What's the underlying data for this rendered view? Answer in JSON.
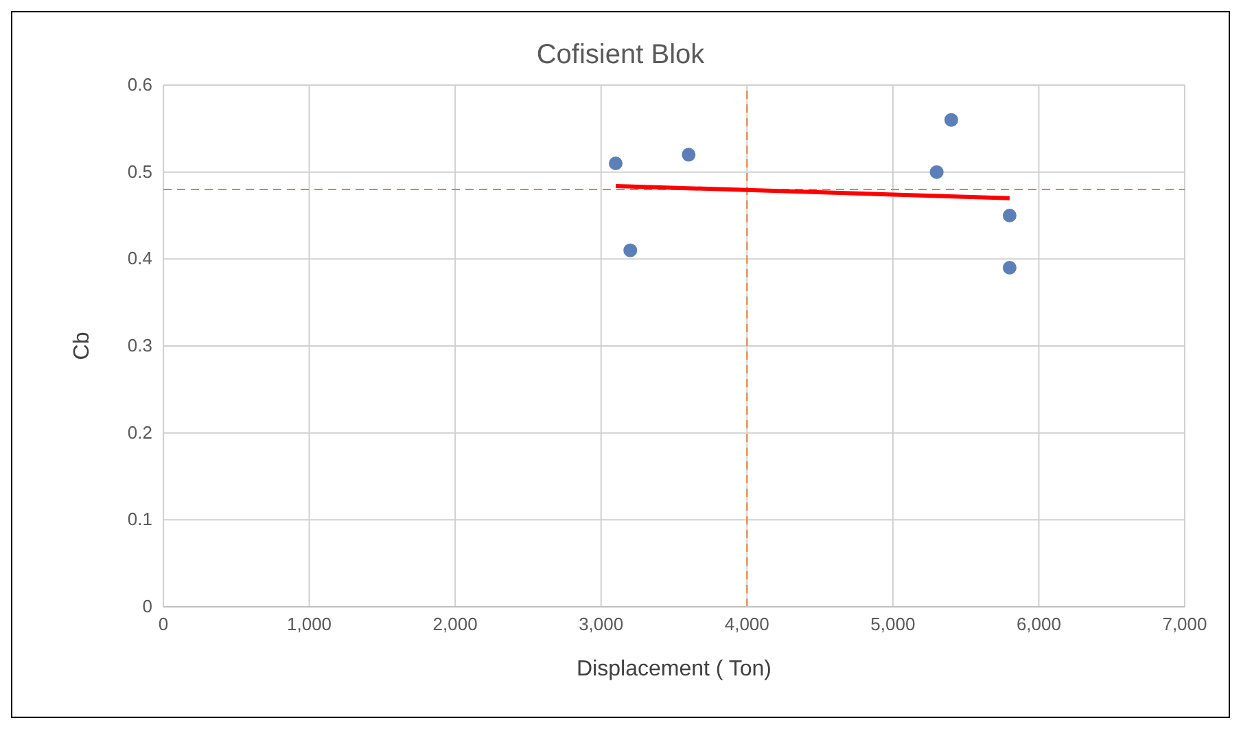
{
  "chart_data": {
    "type": "scatter",
    "title": "Cofisient Blok",
    "xlabel": "Displacement ( Ton)",
    "ylabel": "Cb",
    "xlim": [
      0,
      7000
    ],
    "xticks": [
      {
        "value": 0,
        "label": "0"
      },
      {
        "value": 1000,
        "label": "1,000"
      },
      {
        "value": 2000,
        "label": "2,000"
      },
      {
        "value": 3000,
        "label": "3,000"
      },
      {
        "value": 4000,
        "label": "4,000"
      },
      {
        "value": 5000,
        "label": "5,000"
      },
      {
        "value": 6000,
        "label": "6,000"
      },
      {
        "value": 7000,
        "label": "7,000"
      }
    ],
    "ylim": [
      0,
      0.6
    ],
    "yticks": [
      0,
      0.1,
      0.2,
      0.3,
      0.4,
      0.5,
      0.6
    ],
    "grid": true,
    "legend": false,
    "marker": "circle",
    "series": [
      {
        "type": "scatter",
        "color": "#5b7fb8",
        "x": [
          3100,
          3200,
          3600,
          5300,
          5400,
          5800,
          5800
        ],
        "values": [
          0.51,
          0.41,
          0.52,
          0.5,
          0.56,
          0.45,
          0.39
        ]
      },
      {
        "type": "line",
        "color": "#ff0000",
        "x": [
          3100,
          5800
        ],
        "values": [
          0.484,
          0.47
        ],
        "marker": "none",
        "line_style": "solid"
      }
    ],
    "ref_lines": [
      {
        "axis": "y",
        "value": 0.48,
        "color": "#ed7d31",
        "line_style": "dashed"
      },
      {
        "axis": "x",
        "value": 4000,
        "color": "#ed7d31",
        "line_style": "dashed"
      }
    ]
  }
}
